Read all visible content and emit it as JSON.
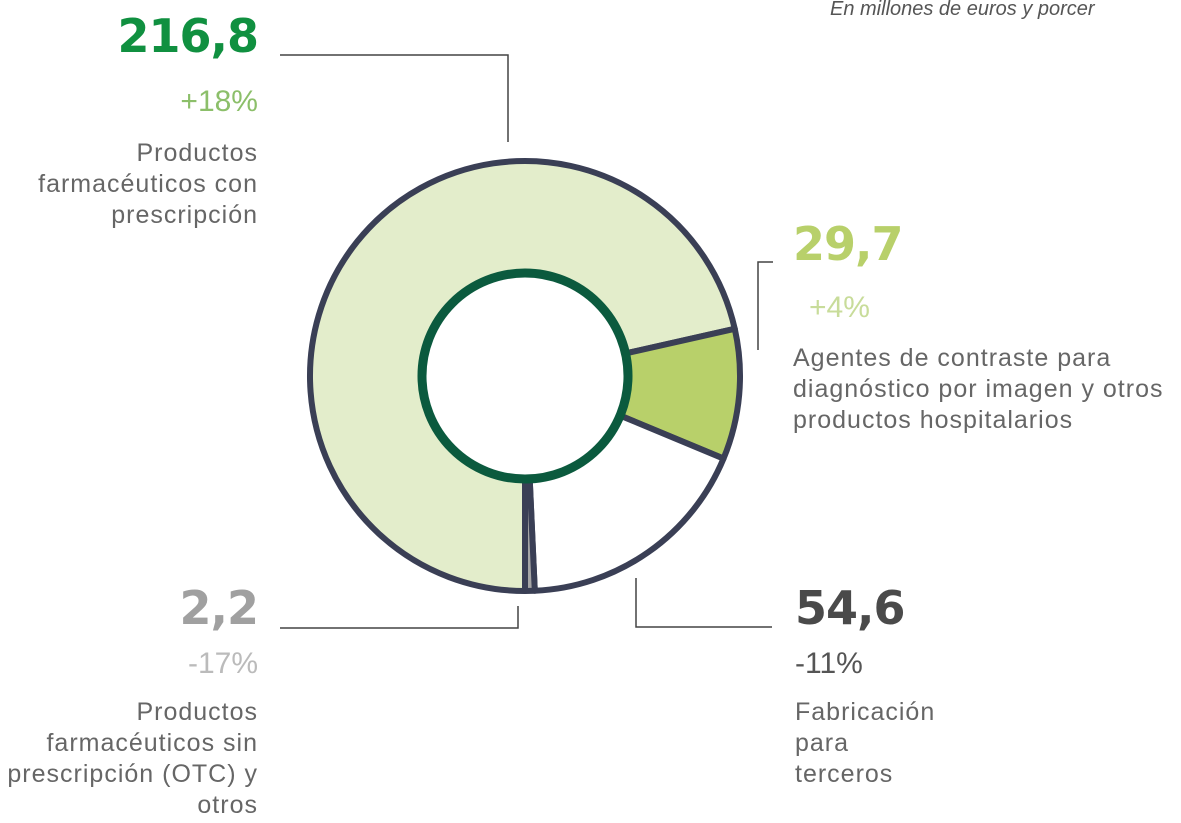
{
  "chart_data": {
    "type": "donut",
    "subtitle": "En millones de euros y porcer",
    "categories": [
      "Productos farmacéuticos con prescripción",
      "Agentes de contraste para diagnóstico por imagen y otros productos hospitalarios",
      "Fabricación para terceros",
      "Productos farmacéuticos sin prescripción (OTC) y otros"
    ],
    "values": [
      216.8,
      29.7,
      54.6,
      2.2
    ],
    "value_labels": [
      "216,8",
      "29,7",
      "54,6",
      "2,2"
    ],
    "changes": [
      "+18%",
      "+4%",
      "-11%",
      "-17%"
    ],
    "colors": [
      "#e3edcb",
      "#b8d06a",
      "#ffffff",
      "#a6a6a6"
    ]
  }
}
